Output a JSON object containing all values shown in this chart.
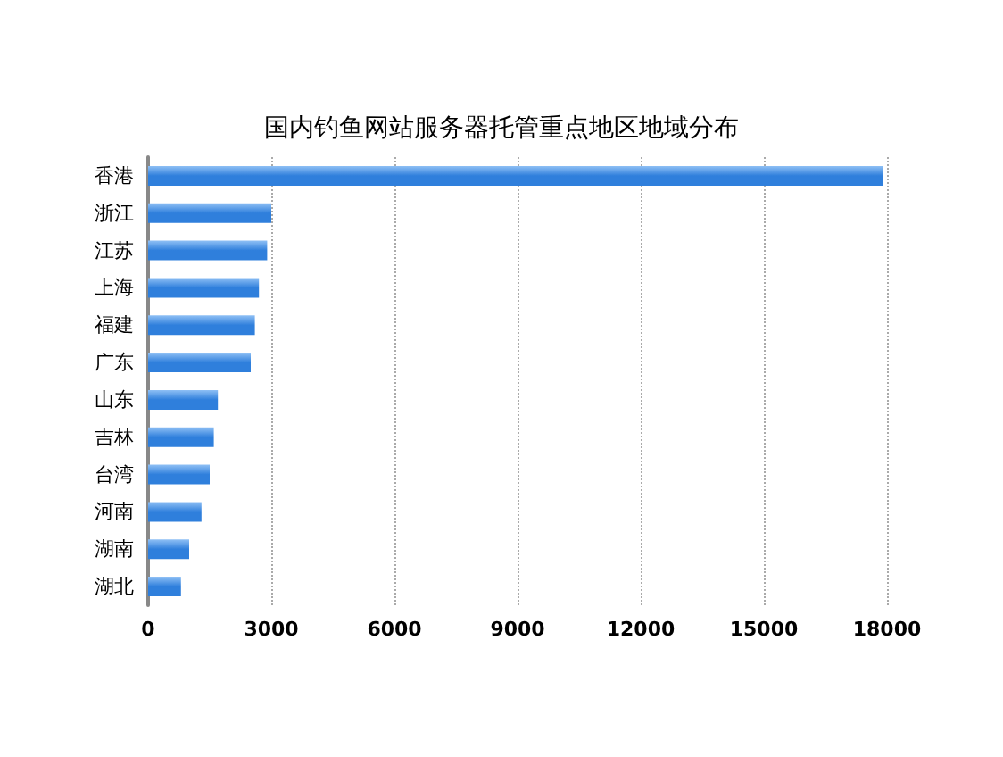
{
  "chart_data": {
    "type": "bar",
    "orientation": "horizontal",
    "title": "国内钓鱼网站服务器托管重点地区地域分布",
    "categories": [
      "香港",
      "浙江",
      "江苏",
      "上海",
      "福建",
      "广东",
      "山东",
      "吉林",
      "台湾",
      "河南",
      "湖南",
      "湖北"
    ],
    "values": [
      17900,
      3000,
      2900,
      2700,
      2600,
      2500,
      1700,
      1600,
      1500,
      1300,
      1000,
      800
    ],
    "color": "#2f7fdc",
    "xlim": [
      0,
      18000
    ],
    "xticks": [
      0,
      3000,
      6000,
      9000,
      12000,
      15000,
      18000
    ],
    "grid": "x"
  }
}
